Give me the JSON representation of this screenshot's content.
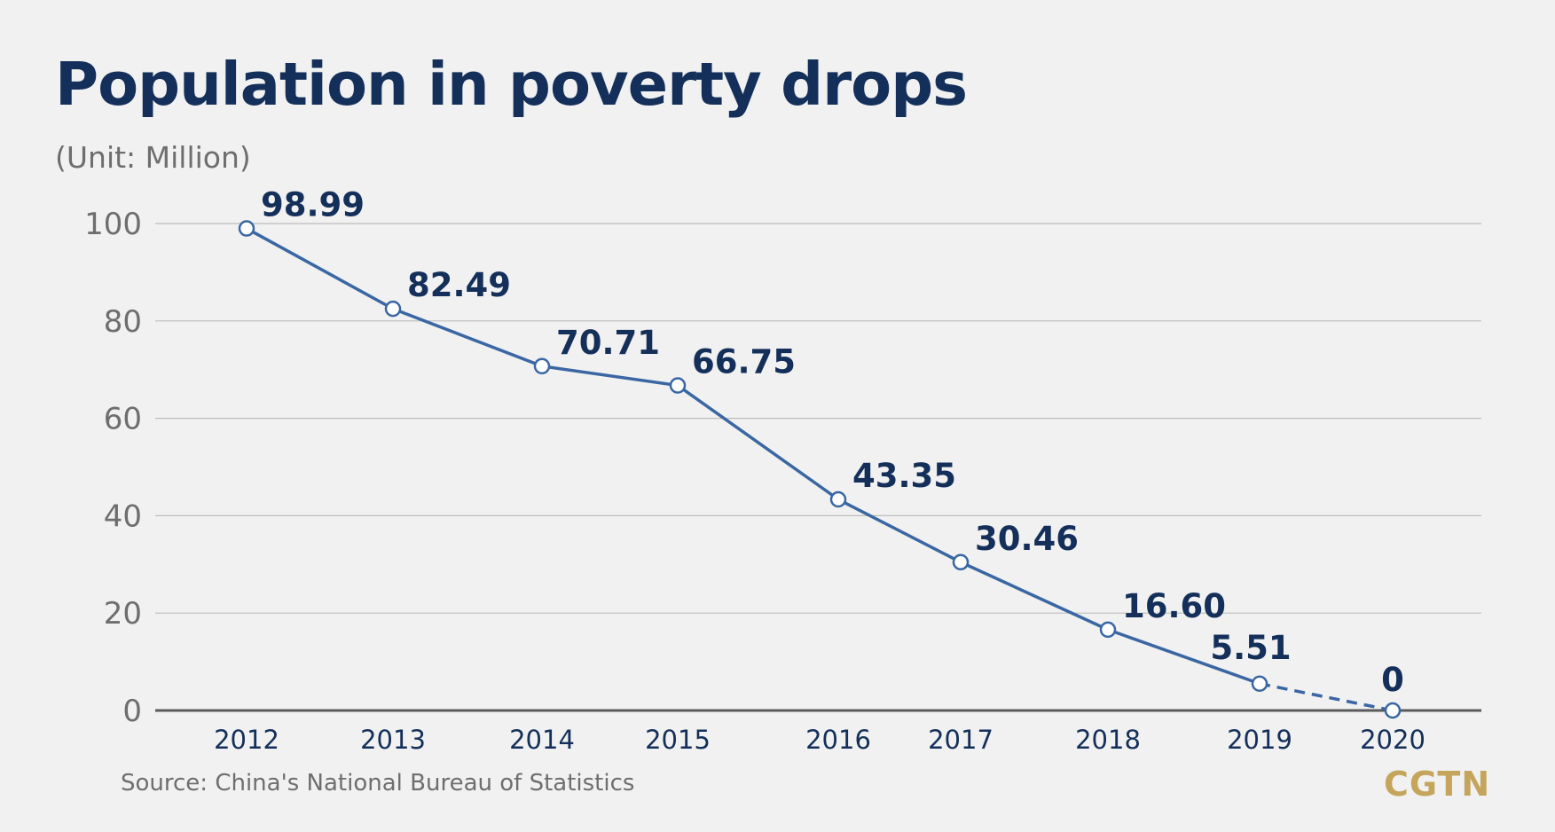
{
  "title": "Population in poverty drops",
  "unit": "(Unit: Million)",
  "source": "Source: China's National Bureau of Statistics",
  "logo": "CGTN",
  "colors": {
    "background": "#f1f1f1",
    "title": "#14305a",
    "line": "#3a67a3",
    "marker_fill": "#ffffff",
    "grid": "#bdbdbd",
    "baseline": "#5a5a5a",
    "muted_text": "#6e6e6e",
    "logo": "#c4a55b"
  },
  "chart_data": {
    "type": "line",
    "title": "Population in poverty drops",
    "ylabel": "(Unit: Million)",
    "xlabel": "",
    "categories": [
      "2012",
      "2013",
      "2014",
      "2015",
      "2016",
      "2017",
      "2018",
      "2019",
      "2020"
    ],
    "values": [
      98.99,
      82.49,
      70.71,
      66.75,
      43.35,
      30.46,
      16.6,
      5.51,
      0
    ],
    "data_labels": [
      "98.99",
      "82.49",
      "70.71",
      "66.75",
      "43.35",
      "30.46",
      "16.60",
      "5.51",
      "0"
    ],
    "yticks": [
      0,
      20,
      40,
      60,
      80,
      100
    ],
    "ylim": [
      0,
      100
    ],
    "grid": true,
    "last_segment_dashed": true
  }
}
